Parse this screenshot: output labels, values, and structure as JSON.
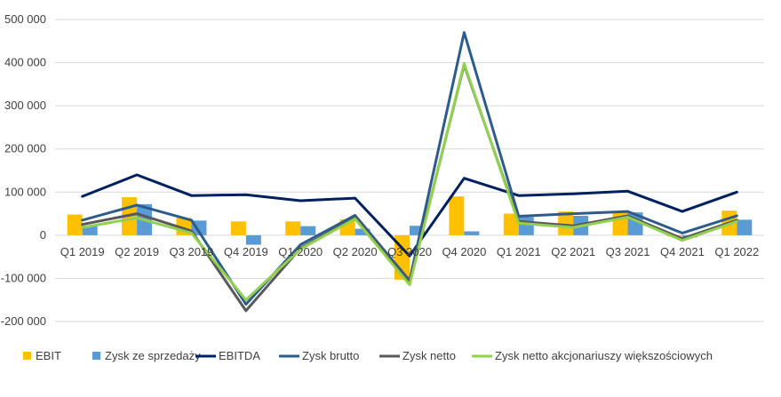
{
  "chart_data": {
    "type": "bar+line",
    "categories": [
      "Q1 2019",
      "Q2 2019",
      "Q3 2019",
      "Q4 2019",
      "Q1 2020",
      "Q2 2020",
      "Q3 2020",
      "Q4 2020",
      "Q1 2021",
      "Q2 2021",
      "Q3 2021",
      "Q4 2021",
      "Q1 2022"
    ],
    "ylim": [
      -200000,
      500000
    ],
    "yticks": [
      -200000,
      -100000,
      0,
      100000,
      200000,
      300000,
      400000,
      500000
    ],
    "ytick_labels": [
      "-200 000",
      "-100 000",
      "0",
      "100 000",
      "200 000",
      "300 000",
      "400 000",
      "500 000"
    ],
    "grid": true,
    "legend_position": "bottom",
    "bar_series": [
      {
        "name": "EBIT",
        "color": "#FFC000",
        "values": [
          48000,
          88000,
          40000,
          32000,
          32000,
          37000,
          -103000,
          90000,
          50000,
          55000,
          55000,
          -3000,
          57000
        ]
      },
      {
        "name": "Zysk ze sprzedaży",
        "color": "#5B9BD5",
        "values": [
          22000,
          72000,
          34000,
          -22000,
          21000,
          15000,
          22000,
          9000,
          42000,
          45000,
          53000,
          -5000,
          36000
        ]
      }
    ],
    "line_series": [
      {
        "name": "EBITDA",
        "color": "#002060",
        "values": [
          90000,
          140000,
          92000,
          94000,
          80000,
          86000,
          -48000,
          132000,
          92000,
          96000,
          102000,
          55000,
          100000
        ]
      },
      {
        "name": "Zysk brutto",
        "color": "#2E5C8A",
        "values": [
          35000,
          70000,
          35000,
          -160000,
          -22000,
          46000,
          -105000,
          470000,
          44000,
          50000,
          55000,
          5000,
          45000
        ]
      },
      {
        "name": "Zysk netto",
        "color": "#595959",
        "values": [
          25000,
          50000,
          10000,
          -175000,
          -30000,
          40000,
          -110000,
          395000,
          32000,
          22000,
          45000,
          -8000,
          35000
        ]
      },
      {
        "name": "Zysk netto akcjonariuszy większościowych",
        "color": "#92D050",
        "values": [
          18000,
          40000,
          5000,
          -150000,
          -32000,
          38000,
          -115000,
          398000,
          28000,
          18000,
          42000,
          -12000,
          32000
        ]
      }
    ]
  }
}
